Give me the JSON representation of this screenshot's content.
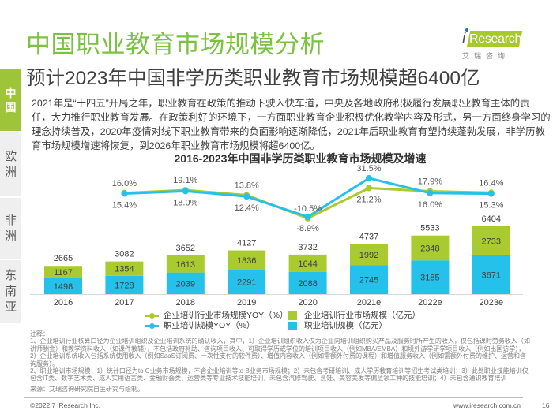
{
  "header": {
    "title": "中国职业教育市场规模分析",
    "subtitle": "预计2023年中国非学历类职业教育市场规模超6400亿"
  },
  "logo": {
    "i": "i",
    "text": "Research",
    "tagline": "艾瑞咨询"
  },
  "sidebar": {
    "items": [
      {
        "label": "中国",
        "active": true
      },
      {
        "label": "欧洲",
        "active": false
      },
      {
        "label": "非洲",
        "active": false
      },
      {
        "label": "东南亚",
        "active": false
      }
    ]
  },
  "intro": {
    "lines": [
      "2021年是“十四五”开局之年，职业教育在政策的推动下驶入快车道，中央及各地政府积极履行发展职业教育主体的责",
      "任，大力推行职业教育发展。在政策利好的环境下，一方面职业教育企业积极优化教学内容及形式，另一方面终身学习的",
      "理念持续普及，2020年疫情对线下职业教育带来的负面影响逐渐降低，2021年后职业教育有望持续蓬勃发展，非学历教",
      "育市场规模增速将恢复，到2026年职业教育市场规模将超6400亿。"
    ]
  },
  "colors": {
    "title_green": "#7cc242",
    "bar_green": "#a9cb2f",
    "bar_blue": "#25c1ea",
    "sidebar_active": "#9ec53a"
  },
  "chart_data": {
    "type": "bar",
    "secondary_type": "line",
    "title": "2016-2023年中国非学历类职业教育市场规模及增速",
    "xlabel": "",
    "ylabel": "",
    "grid": false,
    "legend_position": "bottom",
    "categories": [
      "2016",
      "2017",
      "2018",
      "2019",
      "2020",
      "2021e",
      "2022e",
      "2023e"
    ],
    "totals": [
      2665,
      3082,
      3652,
      4127,
      3732,
      4737,
      5533,
      6404
    ],
    "bar_ylim": [
      0,
      6404
    ],
    "series": [
      {
        "name": "企业培训行业市场规模（亿元）",
        "kind": "bar",
        "stack": "top",
        "color": "#a9cb2f",
        "values": [
          1167,
          1354,
          1613,
          1836,
          1644,
          1992,
          2348,
          2733
        ]
      },
      {
        "name": "职业培训规模（亿元）",
        "kind": "bar",
        "stack": "bottom",
        "color": "#25c1ea",
        "values": [
          1498,
          1728,
          2039,
          2291,
          2088,
          2745,
          3185,
          3671
        ]
      },
      {
        "name": "企业培训行业市场规模YOY（%）",
        "kind": "line",
        "color": "#a9cb2f",
        "values": [
          null,
          16.0,
          19.1,
          13.8,
          -10.5,
          21.2,
          17.9,
          16.4
        ],
        "labels": [
          "",
          "16.0%",
          "19.1%",
          "13.8%",
          "-10.5%",
          "21.2%",
          "17.9%",
          "16.4%"
        ],
        "label_position": [
          "",
          "above",
          "above",
          "above",
          "above",
          "below",
          "above",
          "above"
        ]
      },
      {
        "name": "职业培训规模YOY（%）",
        "kind": "line",
        "color": "#25c1ea",
        "values": [
          null,
          15.4,
          18.0,
          12.4,
          -8.9,
          31.5,
          16.0,
          15.3
        ],
        "labels": [
          "",
          "15.4%",
          "18.0%",
          "12.4%",
          "-8.9%",
          "31.5%",
          "16.0%",
          "15.3%"
        ],
        "label_position": [
          "",
          "below",
          "below",
          "below",
          "below",
          "above",
          "below",
          "below"
        ]
      }
    ],
    "legend": [
      {
        "series": 2,
        "symbol": "line"
      },
      {
        "series": 0,
        "symbol": "square"
      },
      {
        "series": 3,
        "symbol": "line"
      },
      {
        "series": 1,
        "symbol": "square"
      }
    ]
  },
  "notes": {
    "label": "注释：",
    "lines": [
      "1、企业培训行业核算口径为企业培训组织及企业培训系统的确认收入，其中，1）企业培训组织收入仅为企业向培训组织购买产品及服务时所产生的收入，仅包括课时劳务收入（如",
      "讲师酬金）和教学资料收入（如课件教辅），不包括政府补助、咨询项目收入、可取得学历或学位的培训项目收入（例如MBA/EMBA）和境外游学研学项目收入（例如出国访学），",
      "2）企业培训系统收入包括系统使用收入（例如SaaS订阅费、一次性支付的软件费）、增值内容收入（例如需额外付费的课程）和增值服务收入（例如需额外付费的维护、运营和咨",
      "询服务）。",
      "2、职业培训市场规模，1）统计口径为to C业务市场规模，不含企业培训等to B业务市场规模；2）未包含考研培训、成人学历教育培训等招生考试类培训；3）此处职业技能培训仅",
      "包含IT类、数字艺术类、成人实用语言类、金融财会类、运营类等专业技术技能培训，未包含汽修驾驶、烹饪、美容美发等偏蓝领工种的技能培训；4）未包含通识教育培训"
    ]
  },
  "source": "来源：艾瑞咨询研究院自主研究与绘制。",
  "footer": {
    "copyright": "©2022.7 iResearch Inc.",
    "url": "www.iresearch.com.cn",
    "page": "16"
  }
}
